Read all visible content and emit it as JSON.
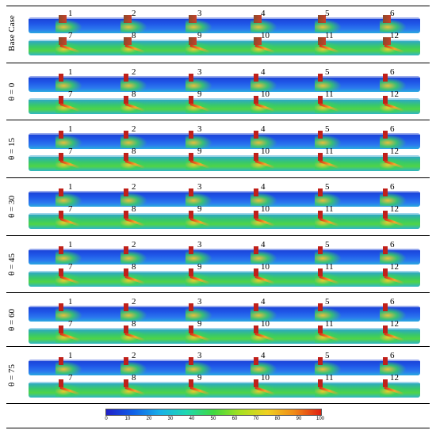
{
  "rows": [
    {
      "label": "Base Case",
      "upper": [
        "1",
        "2",
        "3",
        "4",
        "5",
        "6"
      ],
      "lower": [
        "7",
        "8",
        "9",
        "10",
        "11",
        "12"
      ]
    },
    {
      "label": "θ = 0",
      "upper": [
        "1",
        "2",
        "3",
        "4",
        "5",
        "6"
      ],
      "lower": [
        "7",
        "8",
        "9",
        "10",
        "11",
        "12"
      ]
    },
    {
      "label": "θ = 15",
      "upper": [
        "1",
        "2",
        "3",
        "4",
        "5",
        "6"
      ],
      "lower": [
        "7",
        "8",
        "9",
        "10",
        "11",
        "12"
      ]
    },
    {
      "label": "θ = 30",
      "upper": [
        "1",
        "2",
        "3",
        "4",
        "5",
        "6"
      ],
      "lower": [
        "7",
        "8",
        "9",
        "10",
        "11",
        "12"
      ]
    },
    {
      "label": "θ = 45",
      "upper": [
        "1",
        "2",
        "3",
        "4",
        "5",
        "6"
      ],
      "lower": [
        "7",
        "8",
        "9",
        "10",
        "11",
        "12"
      ]
    },
    {
      "label": "θ = 60",
      "upper": [
        "1",
        "2",
        "3",
        "4",
        "5",
        "6"
      ],
      "lower": [
        "7",
        "8",
        "9",
        "10",
        "11",
        "12"
      ]
    },
    {
      "label": "θ = 75",
      "upper": [
        "1",
        "2",
        "3",
        "4",
        "5",
        "6"
      ],
      "lower": [
        "7",
        "8",
        "9",
        "10",
        "11",
        "12"
      ]
    }
  ],
  "colorbar": {
    "ticks": [
      "0",
      "10",
      "20",
      "30",
      "40",
      "50",
      "60",
      "70",
      "80",
      "90",
      "100"
    ],
    "colors": [
      "#2020c8",
      "#1060e8",
      "#18b0e8",
      "#20d8b0",
      "#40d840",
      "#a8e020",
      "#f0d020",
      "#f08a18",
      "#e02010"
    ]
  }
}
